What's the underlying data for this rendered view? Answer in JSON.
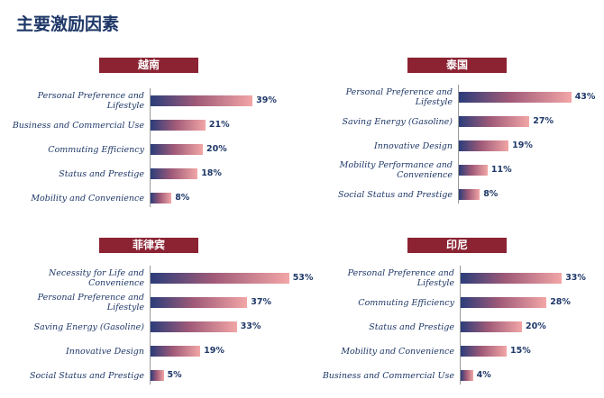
{
  "page_title": "主要激励因素",
  "colors": {
    "title": "#1f3868",
    "header_bg": "#8b2332",
    "bar_start": "#2b3d7a",
    "bar_end": "#f2a6a6"
  },
  "chart_data": [
    {
      "type": "bar",
      "orientation": "horizontal",
      "title": "越南",
      "categories": [
        "Personal Preference and Lifestyle",
        "Business and Commercial Use",
        "Commuting Efficiency",
        "Status and Prestige",
        "Mobility and Convenience"
      ],
      "values": [
        39,
        21,
        20,
        18,
        8
      ],
      "value_labels": [
        "39%",
        "21%",
        "20%",
        "18%",
        "8%"
      ],
      "unit": "%",
      "xlim": [
        0,
        55
      ]
    },
    {
      "type": "bar",
      "orientation": "horizontal",
      "title": "泰国",
      "categories": [
        "Personal Preference and Lifestyle",
        "Saving Energy (Gasoline)",
        "Innovative Design",
        "Mobility Performance and Convenience",
        "Social Status and Prestige"
      ],
      "values": [
        43,
        27,
        19,
        11,
        8
      ],
      "value_labels": [
        "43%",
        "27%",
        "19%",
        "11%",
        "8%"
      ],
      "unit": "%",
      "xlim": [
        0,
        55
      ]
    },
    {
      "type": "bar",
      "orientation": "horizontal",
      "title": "菲律宾",
      "categories": [
        "Necessity for Life and Convenience",
        "Personal Preference and Lifestyle",
        "Saving Energy (Gasoline)",
        "Innovative Design",
        "Social Status and Prestige"
      ],
      "values": [
        53,
        37,
        33,
        19,
        5
      ],
      "value_labels": [
        "53%",
        "37%",
        "33%",
        "19%",
        "5%"
      ],
      "unit": "%",
      "xlim": [
        0,
        55
      ]
    },
    {
      "type": "bar",
      "orientation": "horizontal",
      "title": "印尼",
      "categories": [
        "Personal Preference and Lifestyle",
        "Commuting Efficiency",
        "Status and Prestige",
        "Mobility and Convenience",
        "Business and Commercial Use"
      ],
      "values": [
        33,
        28,
        20,
        15,
        4
      ],
      "value_labels": [
        "33%",
        "28%",
        "20%",
        "15%",
        "4%"
      ],
      "unit": "%",
      "xlim": [
        0,
        55
      ]
    }
  ]
}
